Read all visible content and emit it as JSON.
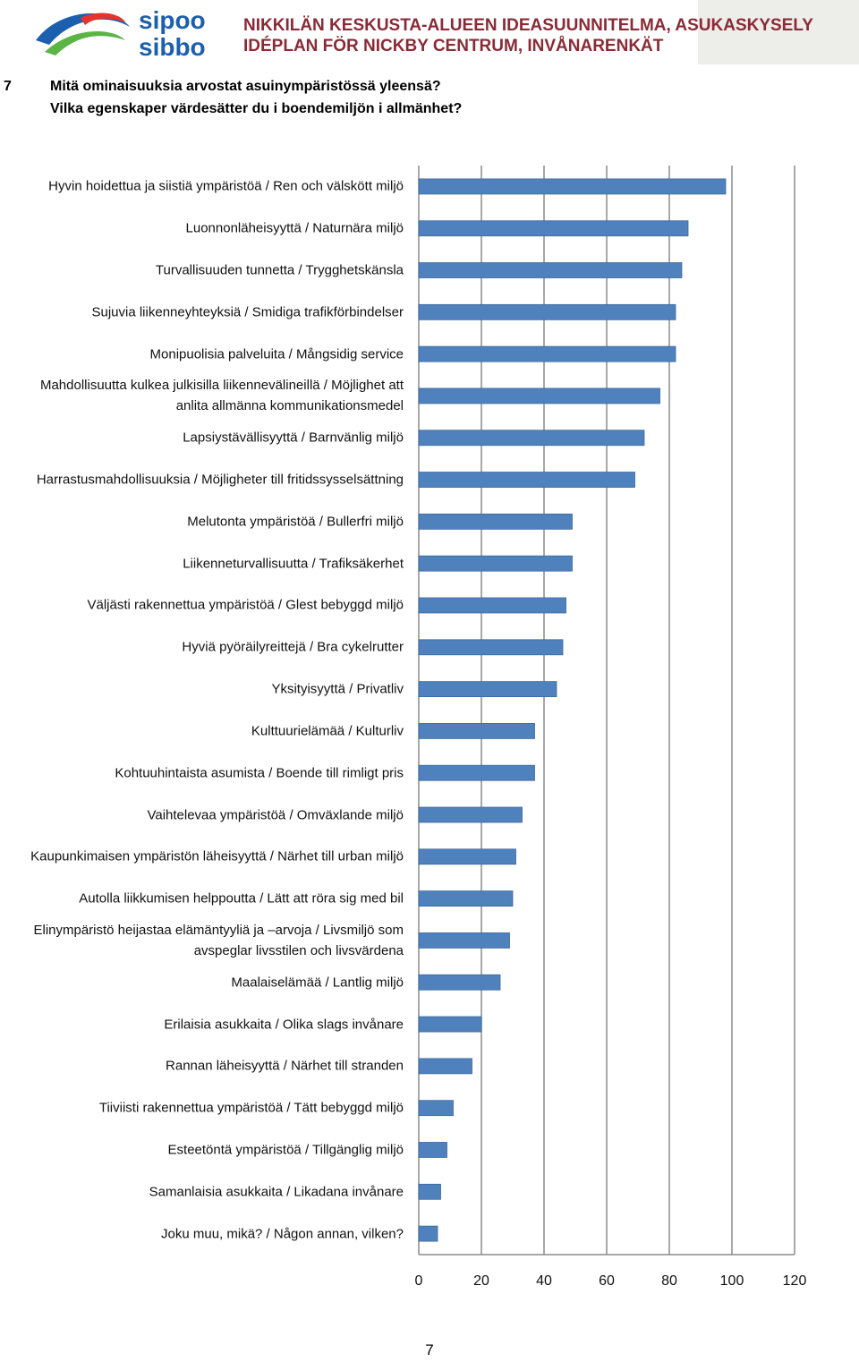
{
  "header": {
    "logo_text": [
      "sipoo",
      "sibbo"
    ],
    "title_lines": [
      "NIKKILÄN KESKUSTA-ALUEEN IDEASUUNNITELMA, ASUKASKYSELY",
      "IDÉPLAN FÖR NICKBY CENTRUM, INVÅNARENKÄT"
    ]
  },
  "question": {
    "number": "7",
    "lines": [
      "Mitä ominaisuuksia arvostat asuinympäristössä yleensä?",
      "Vilka egenskaper värdesätter du i boendemiljön i allmänhet?"
    ]
  },
  "chart_data": {
    "type": "bar",
    "orientation": "horizontal",
    "categories": [
      "Hyvin hoidettua ja siistiä ympäristöä / Ren och välskött miljö",
      "Luonnonläheisyyttä / Naturnära miljö",
      "Turvallisuuden tunnetta / Trygghetskänsla",
      "Sujuvia liikenneyhteyksiä / Smidiga trafikförbindelser",
      "Monipuolisia palveluita / Mångsidig service",
      "Mahdollisuutta kulkea julkisilla liikennevälineillä / Möjlighet att anlita allmänna kommunikationsmedel",
      "Lapsiystävällisyyttä / Barnvänlig miljö",
      "Harrastusmahdollisuuksia / Möjligheter till fritidssysselsättning",
      "Melutonta ympäristöä / Bullerfri miljö",
      "Liikenneturvallisuutta / Trafiksäkerhet",
      "Väljästi rakennettua ympäristöä / Glest bebyggd miljö",
      "Hyviä pyöräilyreittejä / Bra cykelrutter",
      "Yksityisyyttä / Privatliv",
      "Kulttuurielämää / Kulturliv",
      "Kohtuuhintaista asumista / Boende till rimligt pris",
      "Vaihtelevaa ympäristöä / Omväxlande miljö",
      "Kaupunkimaisen ympäristön läheisyyttä / Närhet till urban miljö",
      "Autolla liikkumisen helppoutta / Lätt att röra sig med bil",
      "Elinympäristö heijastaa elämäntyyliä ja –arvoja / Livsmiljö som avspeglar livsstilen och livsvärdena",
      "Maalaiselämää / Lantlig miljö",
      "Erilaisia asukkaita / Olika slags invånare",
      "Rannan läheisyyttä / Närhet till stranden",
      "Tiiviisti rakennettua ympäristöä / Tätt bebyggd miljö",
      "Esteetöntä ympäristöä / Tillgänglig miljö",
      "Samanlaisia asukkaita / Likadana invånare",
      "Joku muu, mikä? / Någon annan, vilken?"
    ],
    "values": [
      98,
      86,
      84,
      82,
      82,
      77,
      72,
      69,
      49,
      49,
      47,
      46,
      44,
      37,
      37,
      33,
      31,
      30,
      29,
      26,
      20,
      17,
      11,
      9,
      7,
      6
    ],
    "color": "#4f81bd",
    "xlim": [
      0,
      120
    ],
    "xticks": [
      0,
      20,
      40,
      60,
      80,
      100,
      120
    ],
    "grid": true
  },
  "page_number": "7"
}
